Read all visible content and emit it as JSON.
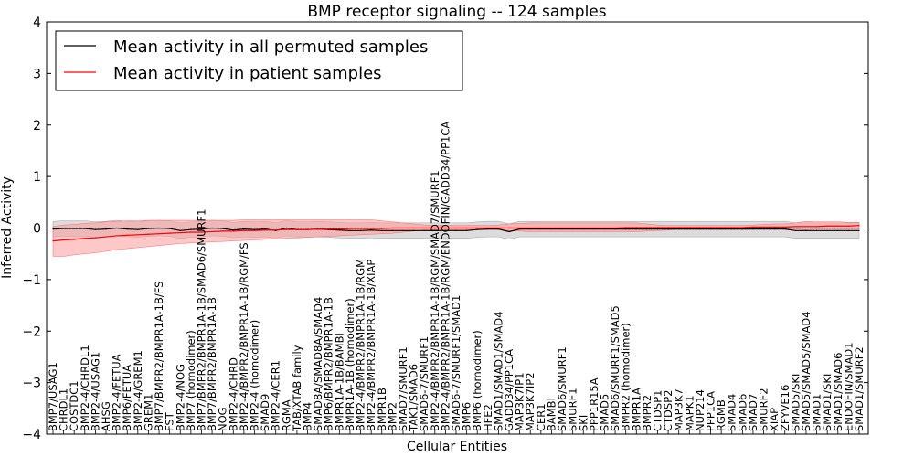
{
  "chart_data": {
    "type": "line",
    "title": "BMP receptor signaling -- 124 samples",
    "xlabel": "Cellular Entities",
    "ylabel": "Inferred Activity",
    "ylim": [
      -4,
      4
    ],
    "yticks": [
      4,
      3,
      2,
      1,
      0,
      -1,
      -2,
      -3,
      -4
    ],
    "colors": {
      "permuted": "#000000",
      "patient": "#ff0000",
      "permuted_band": "#c0c0c0",
      "patient_band": "#ff9a9a"
    },
    "legend": {
      "position": "top-left",
      "entries": [
        {
          "name": "Mean activity in all permuted samples",
          "color": "#000000"
        },
        {
          "name": "Mean activity in patient samples",
          "color": "#ff0000"
        }
      ]
    },
    "categories": [
      "BMP7/USAG1",
      "CHRDL1",
      "COSTDC1",
      "BMP2-4/CHRDL1",
      "BMP2-4/USAG1",
      "AHSG",
      "BMP2-4/FETUA",
      "BMP6/FETUA",
      "BMP2-4/GREM1",
      "GREM1",
      "BMP7/BMPR2/BMPR1A-1B/FS",
      "FST",
      "BMP2-4/NOG",
      "BMP7 (homodimer)",
      "BMP7/BMPR2/BMPR1A-1B/SMAD6/SMURF1",
      "BMP7/BMPR2/BMPR1A-1B",
      "NOG",
      "BMP2-4/CHRD",
      "BMP2-4/BMPR2/BMPR1A-1B/RGM/FS",
      "BMP2-4 (homodimer)",
      "SMAD9",
      "BMP2-4/CER1",
      "RGMA",
      "TAB/XTAB family",
      "BMP4",
      "SMAD8A/SMAD8A/SMAD4",
      "BMP6/BMPR2/BMPR1A-1B",
      "BMPR1A-1B/BAMBI",
      "BMPR1A-1B (homodimer)",
      "BMP2-4/BMPR2/BMPR1A-1B/RGM",
      "BMP2-4/BMPR2/BMPR1A-1B/XIAP",
      "BMPR1B",
      "BMP2",
      "SMAD7/SMURF1",
      "TAK1/SMAD6",
      "SMAD6-7/SMURF1",
      "BMP2-4/BMPR2/BMPR1A-1B/RGM/SMAD7/SMURF1",
      "BMP2-4/BMPR2/BMPR1A-1B/RGM/ENDOFIN/GADD34/PP1CA",
      "SMAD6-7/SMURF1/SMAD1",
      "BMP6",
      "BMP6 (homodimer)",
      "HFE2",
      "SMAD1/SMAD1/SMAD4",
      "GADD34/PP1CA",
      "MAP3K7IP1",
      "MAP3K7IP2",
      "CER1",
      "BAMBI",
      "SMAD6/SMURF1",
      "SMURF1",
      "SKI",
      "PPP1R15A",
      "SMAD5",
      "SMAD6/SMURF1/SMAD5",
      "BMPR2 (homodimer)",
      "BMPR1A",
      "BMPR2",
      "CTDSP1",
      "CTDSP2",
      "MAP3K7",
      "MAPK1",
      "NUP214",
      "PPP1CA",
      "RGMB",
      "SMAD4",
      "SMAD6",
      "SMAD7",
      "SMURF2",
      "XIAP",
      "ZFYVE16",
      "SMAD5/SKI",
      "SMAD5/SMAD5/SMAD4",
      "SMAD1",
      "SMAD1/SKI",
      "SMAD1/SMAD6",
      "ENDOFIN/SMAD1",
      "SMAD1/SMURF2"
    ],
    "series": [
      {
        "name": "Mean activity in all permuted samples",
        "values": [
          -0.02,
          -0.01,
          -0.01,
          -0.01,
          -0.03,
          -0.02,
          0.0,
          -0.02,
          -0.03,
          -0.01,
          0.0,
          -0.01,
          -0.05,
          -0.03,
          -0.02,
          0.0,
          -0.01,
          -0.04,
          -0.02,
          -0.03,
          -0.02,
          -0.05,
          0.0,
          -0.03,
          -0.03,
          -0.02,
          -0.03,
          -0.04,
          -0.05,
          -0.05,
          -0.04,
          -0.05,
          -0.05,
          -0.05,
          -0.05,
          -0.05,
          -0.05,
          -0.05,
          -0.05,
          -0.05,
          -0.03,
          -0.02,
          -0.02,
          -0.07,
          -0.02,
          -0.02,
          -0.02,
          -0.02,
          -0.02,
          -0.02,
          -0.02,
          -0.02,
          -0.02,
          -0.02,
          -0.02,
          -0.02,
          -0.02,
          -0.02,
          -0.02,
          -0.02,
          -0.02,
          -0.02,
          -0.02,
          -0.02,
          -0.02,
          -0.02,
          -0.02,
          -0.02,
          -0.02,
          -0.02,
          -0.05,
          -0.05,
          -0.05,
          -0.05,
          -0.05,
          -0.05,
          -0.05
        ],
        "band": 0.15
      },
      {
        "name": "Mean activity in patient samples",
        "values": [
          -0.25,
          -0.23,
          -0.22,
          -0.2,
          -0.19,
          -0.17,
          -0.15,
          -0.14,
          -0.13,
          -0.12,
          -0.11,
          -0.1,
          -0.09,
          -0.08,
          -0.08,
          -0.07,
          -0.06,
          -0.06,
          -0.05,
          -0.05,
          -0.04,
          -0.04,
          -0.03,
          -0.03,
          -0.03,
          -0.02,
          -0.02,
          -0.02,
          -0.01,
          -0.01,
          -0.01,
          -0.01,
          0.0,
          0.0,
          0.0,
          0.0,
          0.0,
          0.0,
          0.0,
          0.0,
          0.0,
          0.0,
          0.0,
          0.0,
          0.0,
          0.0,
          0.0,
          0.0,
          0.0,
          0.0,
          0.0,
          0.0,
          0.0,
          0.0,
          0.01,
          0.01,
          0.01,
          0.01,
          0.01,
          0.01,
          0.01,
          0.01,
          0.01,
          0.01,
          0.01,
          0.01,
          0.02,
          0.02,
          0.02,
          0.02,
          0.03,
          0.03,
          0.03,
          0.04,
          0.04,
          0.04,
          0.05
        ],
        "band_upper": [
          0.03,
          0.06,
          0.07,
          0.09,
          0.1,
          0.12,
          0.13,
          0.14,
          0.14,
          0.15,
          0.15,
          0.15,
          0.15,
          0.15,
          0.15,
          0.15,
          0.15,
          0.15,
          0.16,
          0.16,
          0.16,
          0.16,
          0.16,
          0.16,
          0.16,
          0.16,
          0.16,
          0.16,
          0.16,
          0.16,
          0.16,
          0.14,
          0.12,
          0.1,
          0.08,
          0.06,
          0.05,
          0.05,
          0.05,
          0.05,
          0.05,
          0.05,
          0.06,
          0.08,
          0.09,
          0.1,
          0.1,
          0.1,
          0.1,
          0.1,
          0.1,
          0.1,
          0.1,
          0.1,
          0.1,
          0.1,
          0.08,
          0.06,
          0.05,
          0.05,
          0.05,
          0.05,
          0.05,
          0.05,
          0.05,
          0.05,
          0.06,
          0.07,
          0.08,
          0.08,
          0.1,
          0.13,
          0.12,
          0.12,
          0.12,
          0.11,
          0.11
        ],
        "band_lower": [
          -0.55,
          -0.55,
          -0.52,
          -0.5,
          -0.48,
          -0.45,
          -0.42,
          -0.4,
          -0.38,
          -0.36,
          -0.34,
          -0.32,
          -0.3,
          -0.29,
          -0.28,
          -0.27,
          -0.26,
          -0.25,
          -0.24,
          -0.23,
          -0.22,
          -0.21,
          -0.2,
          -0.19,
          -0.18,
          -0.17,
          -0.16,
          -0.15,
          -0.14,
          -0.13,
          -0.12,
          -0.11,
          -0.1,
          -0.08,
          -0.06,
          -0.04,
          -0.03,
          -0.03,
          -0.03,
          -0.03,
          -0.03,
          -0.03,
          -0.03,
          -0.05,
          -0.06,
          -0.07,
          -0.07,
          -0.07,
          -0.07,
          -0.07,
          -0.07,
          -0.07,
          -0.07,
          -0.07,
          -0.07,
          -0.07,
          -0.06,
          -0.05,
          -0.04,
          -0.03,
          -0.03,
          -0.03,
          -0.03,
          -0.03,
          -0.03,
          -0.03,
          -0.02,
          -0.02,
          -0.01,
          -0.01,
          -0.02,
          -0.03,
          -0.02,
          -0.02,
          -0.02,
          -0.02,
          -0.02
        ]
      }
    ]
  }
}
